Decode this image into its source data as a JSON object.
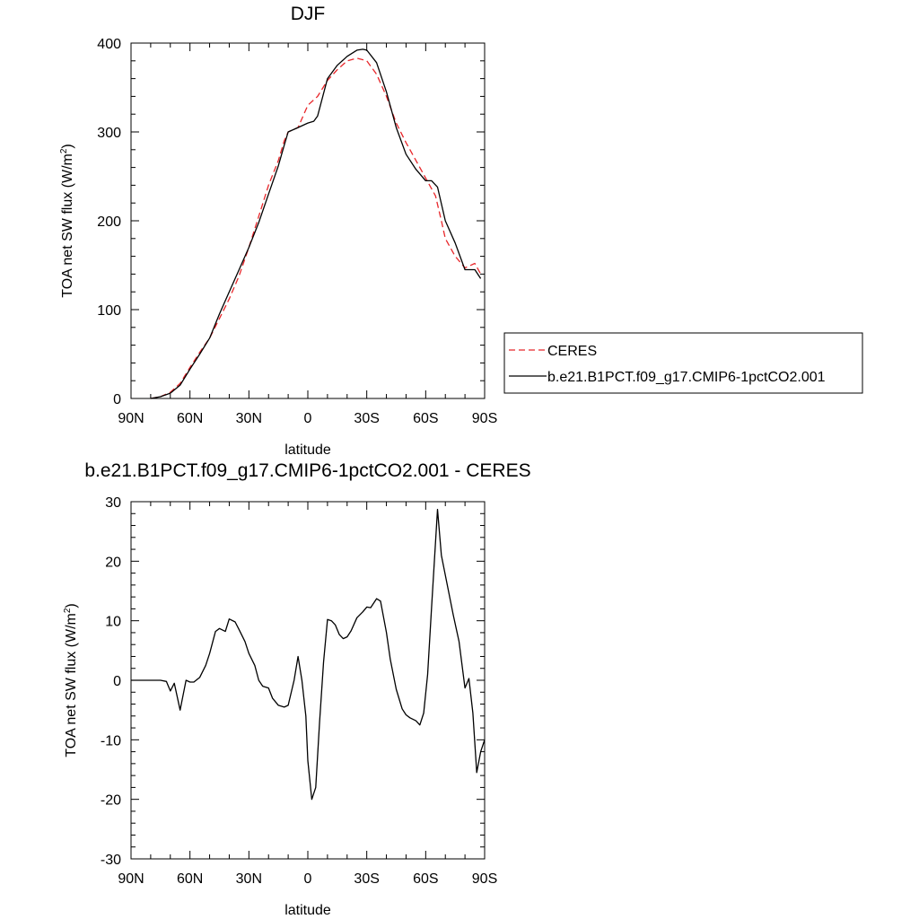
{
  "chart_data": [
    {
      "type": "line",
      "title": "DJF",
      "xlabel": "latitude",
      "ylabel_main": "TOA net SW flux (W/m",
      "ylabel_sup": "2",
      "ylabel_close": ")",
      "xlim": [
        90,
        -90
      ],
      "ylim": [
        0,
        400
      ],
      "yticks": [
        0,
        100,
        200,
        300,
        400
      ],
      "xticks": [
        {
          "value": 90,
          "label": "90N"
        },
        {
          "value": 60,
          "label": "60N"
        },
        {
          "value": 30,
          "label": "30N"
        },
        {
          "value": 0,
          "label": "0"
        },
        {
          "value": -30,
          "label": "30S"
        },
        {
          "value": -60,
          "label": "60S"
        },
        {
          "value": -90,
          "label": "90S"
        }
      ],
      "legend": "right",
      "series": [
        {
          "name": "CERES",
          "color": "#e8262a",
          "dash": true,
          "x": [
            80,
            75,
            70,
            65,
            60,
            55,
            50,
            45,
            40,
            35,
            30,
            25,
            20,
            15,
            12,
            10,
            5,
            0,
            -5,
            -10,
            -15,
            -20,
            -25,
            -30,
            -35,
            -40,
            -45,
            -50,
            -55,
            -60,
            -65,
            -68,
            -70,
            -75,
            -80,
            -85,
            -88
          ],
          "y": [
            0,
            2,
            7,
            17,
            35,
            52,
            68,
            90,
            112,
            138,
            170,
            205,
            240,
            268,
            290,
            300,
            305,
            330,
            340,
            358,
            370,
            380,
            383,
            380,
            365,
            340,
            310,
            288,
            268,
            248,
            228,
            200,
            180,
            160,
            147,
            152,
            140
          ]
        },
        {
          "name": "b.e21.B1PCT.f09_g17.CMIP6-1pctCO2.001",
          "color": "#000000",
          "dash": false,
          "x": [
            80,
            75,
            70,
            65,
            60,
            55,
            50,
            45,
            40,
            35,
            30,
            25,
            20,
            15,
            12,
            10,
            5,
            0,
            -3,
            -5,
            -10,
            -15,
            -20,
            -25,
            -28,
            -30,
            -35,
            -40,
            -45,
            -50,
            -55,
            -60,
            -63,
            -66,
            -70,
            -75,
            -80,
            -85,
            -88
          ],
          "y": [
            0,
            2,
            6,
            15,
            33,
            50,
            68,
            95,
            120,
            145,
            170,
            198,
            230,
            262,
            285,
            300,
            305,
            310,
            312,
            318,
            360,
            375,
            385,
            392,
            393,
            392,
            378,
            345,
            305,
            275,
            258,
            245,
            245,
            238,
            200,
            175,
            145,
            145,
            135
          ]
        }
      ]
    },
    {
      "type": "line",
      "title": "b.e21.B1PCT.f09_g17.CMIP6-1pctCO2.001 - CERES",
      "xlabel": "latitude",
      "ylabel_main": "TOA net SW flux (W/m",
      "ylabel_sup": "2",
      "ylabel_close": ")",
      "xlim": [
        90,
        -90
      ],
      "ylim": [
        -30,
        30
      ],
      "yticks": [
        -30,
        -20,
        -10,
        0,
        10,
        20,
        30
      ],
      "xticks": [
        {
          "value": 90,
          "label": "90N"
        },
        {
          "value": 60,
          "label": "60N"
        },
        {
          "value": 30,
          "label": "30N"
        },
        {
          "value": 0,
          "label": "0"
        },
        {
          "value": -30,
          "label": "30S"
        },
        {
          "value": -60,
          "label": "60S"
        },
        {
          "value": -90,
          "label": "90S"
        }
      ],
      "series": [
        {
          "color": "#000000",
          "dash": false,
          "x": [
            90,
            85,
            80,
            75,
            72,
            70,
            68,
            65,
            62,
            60,
            58,
            55,
            52,
            50,
            47,
            45,
            42,
            40,
            37,
            35,
            32,
            30,
            27,
            25,
            23,
            20,
            18,
            15,
            12,
            10,
            7,
            5,
            3,
            1,
            0,
            -2,
            -4,
            -6,
            -8,
            -10,
            -12,
            -14,
            -16,
            -18,
            -20,
            -22,
            -25,
            -28,
            -30,
            -32,
            -35,
            -37,
            -40,
            -42,
            -45,
            -48,
            -50,
            -52,
            -55,
            -57,
            -59,
            -61,
            -63,
            -66,
            -68,
            -71,
            -74,
            -77,
            -80,
            -82,
            -84,
            -86,
            -88,
            -90
          ],
          "y": [
            0,
            0,
            0,
            0,
            -0.2,
            -1.8,
            -0.5,
            -5,
            0,
            -0.3,
            -0.3,
            0.5,
            2.5,
            4.5,
            8.2,
            8.7,
            8.2,
            10.3,
            9.8,
            8.5,
            6.5,
            4.5,
            2.5,
            0,
            -1,
            -1.3,
            -3,
            -4.2,
            -4.5,
            -4.2,
            0,
            4,
            0,
            -6,
            -13.5,
            -20,
            -18,
            -7,
            3,
            10.2,
            10,
            9.3,
            7.7,
            7,
            7.3,
            8.3,
            10.5,
            11.5,
            12.3,
            12.2,
            13.7,
            13.3,
            8,
            3.5,
            -1.5,
            -4.8,
            -5.8,
            -6.3,
            -6.8,
            -7.5,
            -5.5,
            1,
            12.3,
            28.7,
            21,
            16,
            11,
            6.5,
            -1.3,
            0.3,
            -5.5,
            -15.5,
            -12,
            -10
          ]
        }
      ]
    }
  ]
}
